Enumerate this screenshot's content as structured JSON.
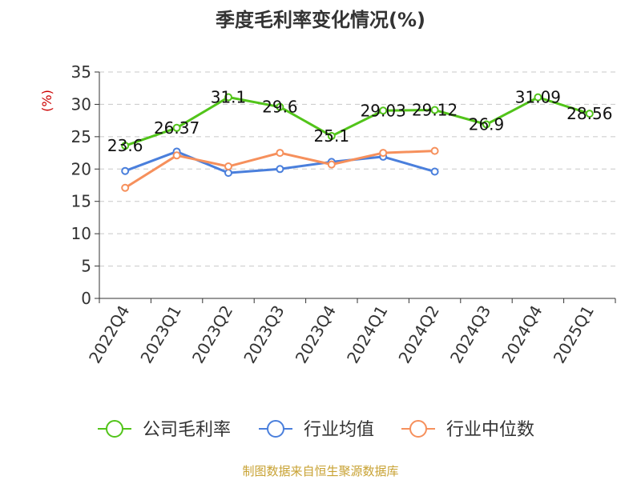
{
  "chart_data": {
    "type": "line",
    "title": "季度毛利率变化情况(%)",
    "ylabel": "(%)",
    "xlabel": "",
    "ylim": [
      0,
      35
    ],
    "yticks": [
      0,
      5,
      10,
      15,
      20,
      25,
      30,
      35
    ],
    "categories": [
      "2022Q4",
      "2023Q1",
      "2023Q2",
      "2023Q3",
      "2023Q4",
      "2024Q1",
      "2024Q2",
      "2024Q3",
      "2024Q4",
      "2025Q1"
    ],
    "grid": true,
    "legend_position": "bottom",
    "series": [
      {
        "name": "公司毛利率",
        "color": "#52c41a",
        "values": [
          23.6,
          26.37,
          31.1,
          29.6,
          25.1,
          29.03,
          29.12,
          26.9,
          31.09,
          28.56
        ],
        "labels": [
          "23.6",
          "26.37",
          "31.1",
          "29.6",
          "25.1",
          "29.03",
          "29.12",
          "26.9",
          "31.09",
          "28.56"
        ]
      },
      {
        "name": "行业均值",
        "color": "#4a7fdc",
        "values": [
          19.7,
          22.7,
          19.4,
          20.0,
          21.1,
          21.9,
          19.6,
          null,
          null,
          null
        ]
      },
      {
        "name": "行业中位数",
        "color": "#f6905c",
        "values": [
          17.1,
          22.1,
          20.4,
          22.5,
          20.7,
          22.5,
          22.8,
          null,
          null,
          null
        ]
      }
    ],
    "source": "制图数据来自恒生聚源数据库"
  }
}
